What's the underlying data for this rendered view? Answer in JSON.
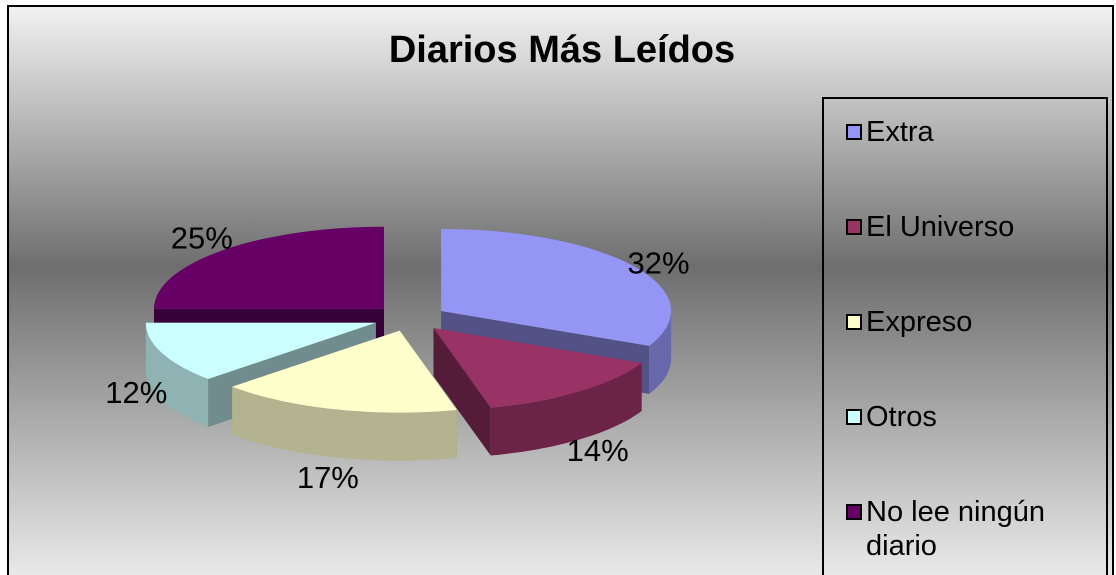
{
  "chart_data": {
    "type": "pie",
    "title": "Diarios Más Leídos",
    "categories": [
      "Extra",
      "El Universo",
      "Expreso",
      "Otros",
      "No lee ningún diario"
    ],
    "values": [
      32,
      14,
      17,
      12,
      25
    ],
    "value_labels": [
      "32%",
      "14%",
      "17%",
      "12%",
      "25%"
    ],
    "colors": [
      "#9595f5",
      "#993366",
      "#ffffcc",
      "#ccffff",
      "#660066"
    ],
    "legend": "right"
  }
}
